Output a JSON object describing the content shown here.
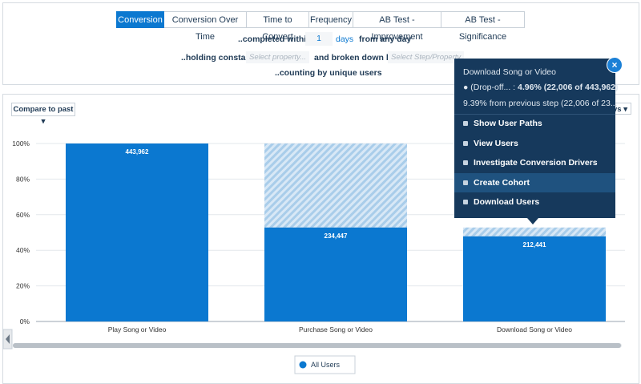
{
  "tabs": [
    "Conversion",
    "Conversion Over Time",
    "Time to Convert",
    "Frequency",
    "AB Test - Improvement",
    "AB Test - Significance"
  ],
  "controls": {
    "completed_label": "..completed within",
    "days_value": "1",
    "days_unit": "days",
    "from_label": "from any day",
    "holding_label": "..holding constant",
    "property_placeholder": "Select property...",
    "broken_label": "and broken down by",
    "step_placeholder": "Select Step/Property",
    "counting_label": "..counting by unique users"
  },
  "compare_button": "Compare to past",
  "hidden_button": "ys",
  "tooltip": {
    "title": "Download Song or Video",
    "dropoff_prefix": "(Drop-off... :",
    "dropoff_value": "4.96% (22,006 of 443,962)",
    "previous_step": "9.39% from previous step (22,006 of 23...",
    "menu": [
      "Show User Paths",
      "View Users",
      "Investigate Conversion Drivers",
      "Create Cohort",
      "Download Users"
    ]
  },
  "chart_data": {
    "type": "bar",
    "categories": [
      "Play Song or Video",
      "Purchase Song or Video",
      "Download Song or Video"
    ],
    "series": [
      {
        "name": "All Users",
        "color": "#0b78d0",
        "values": [
          100,
          52.81,
          47.85
        ],
        "bar_labels": [
          "443,962",
          "234,447",
          "212,441"
        ]
      }
    ],
    "dropoff": {
      "color": "#a9cdea",
      "values": [
        null,
        47.19,
        4.96
      ]
    },
    "ylim": [
      0,
      100
    ],
    "yticks": [
      {
        "value": 0,
        "label": "0%"
      },
      {
        "value": 20,
        "label": "20%"
      },
      {
        "value": 40,
        "label": "40%"
      },
      {
        "value": 60,
        "label": "60%"
      },
      {
        "value": 80,
        "label": "80%"
      },
      {
        "value": 100,
        "label": "100%"
      }
    ],
    "grid": true
  }
}
